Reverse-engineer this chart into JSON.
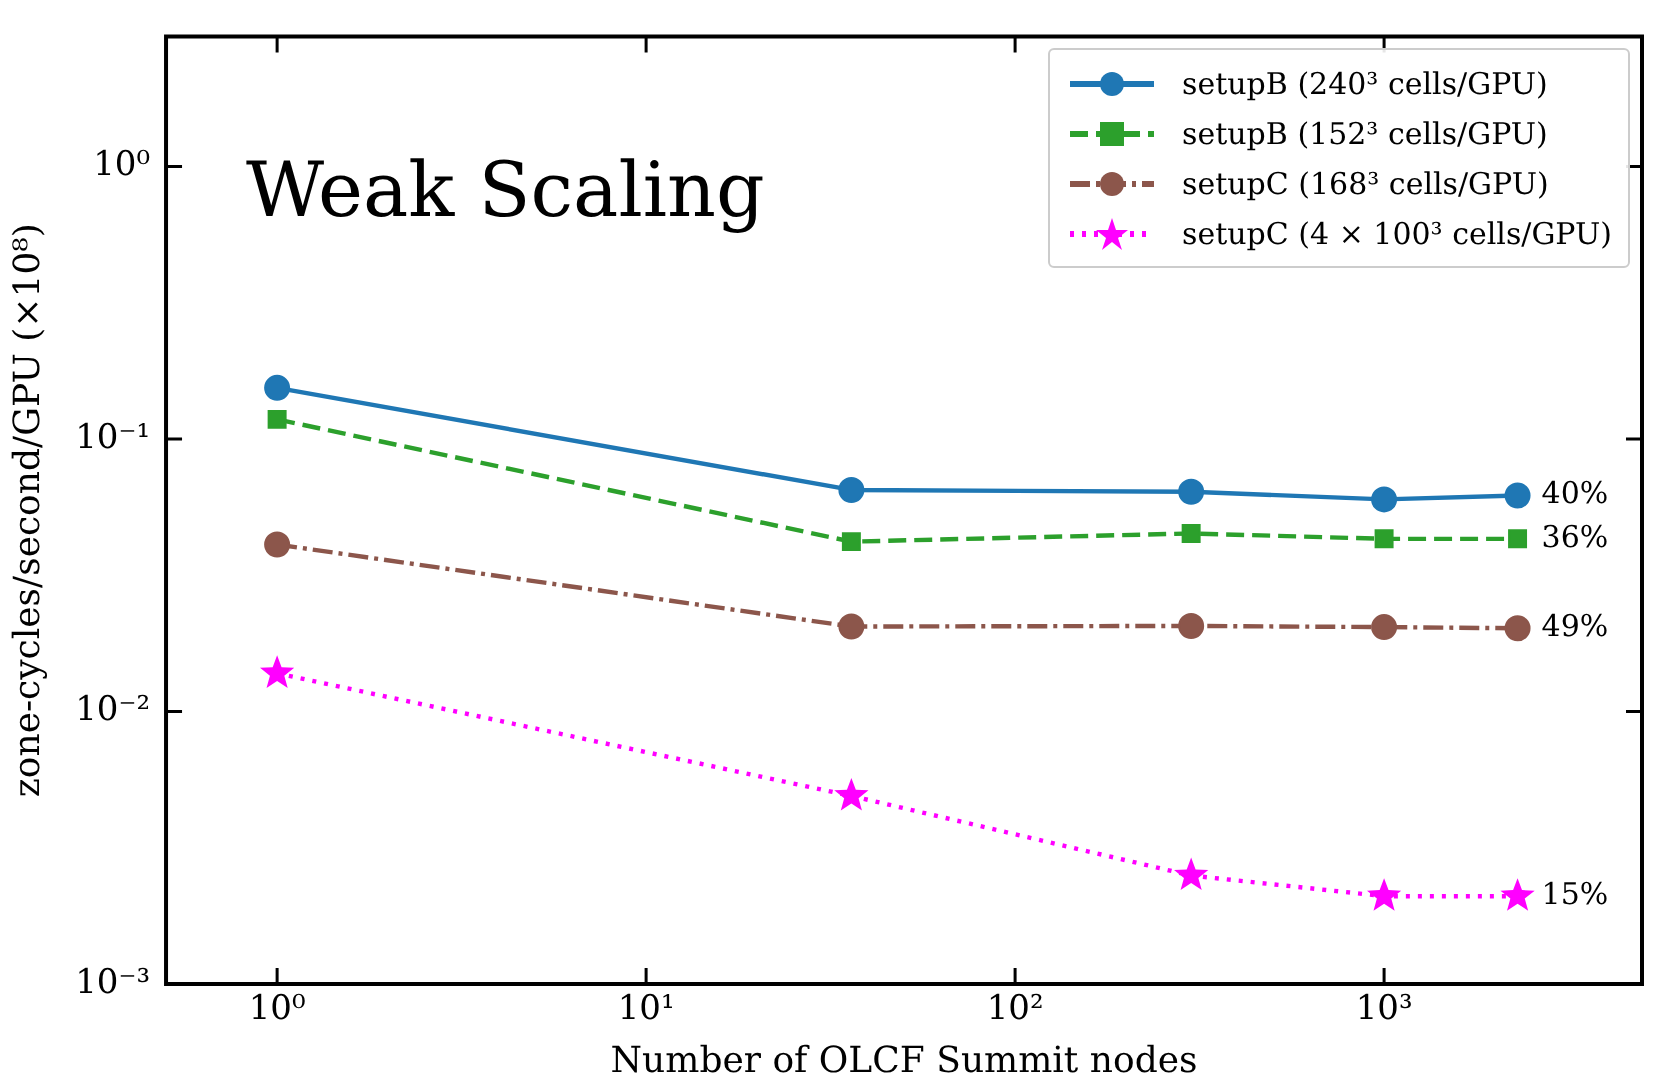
{
  "chart_data": {
    "type": "line",
    "title": "Weak Scaling",
    "xlabel": "Number of OLCF Summit nodes",
    "ylabel": "zone-cycles/second/GPU (×10⁸)",
    "x": [
      1,
      36,
      300,
      1000,
      2300
    ],
    "series": [
      {
        "name": "setupB (240³ cells/GPU)",
        "color": "#1f77b4",
        "marker": "circle",
        "line_style": "solid",
        "values": [
          0.154,
          0.065,
          0.064,
          0.06,
          0.062
        ]
      },
      {
        "name": "setupB (152³ cells/GPU)",
        "color": "#2ca02c",
        "marker": "square",
        "line_style": "dashed",
        "values": [
          0.118,
          0.042,
          0.045,
          0.043,
          0.043
        ]
      },
      {
        "name": "setupC (168³ cells/GPU)",
        "color": "#8c564b",
        "marker": "circle",
        "line_style": "dashdot",
        "values": [
          0.041,
          0.0205,
          0.0206,
          0.0204,
          0.0202
        ]
      },
      {
        "name": "setupC (4 × 100³ cells/GPU)",
        "color": "#ff00ff",
        "marker": "star",
        "line_style": "dotted",
        "values": [
          0.0138,
          0.0049,
          0.0025,
          0.0021,
          0.0021
        ]
      }
    ],
    "annotations": [
      "40%",
      "36%",
      "49%",
      "15%"
    ],
    "log": "xy",
    "xlim": [
      0.5,
      5000
    ],
    "ylim": [
      0.001,
      3
    ],
    "xticks": [
      {
        "value": 1,
        "label": "10⁰"
      },
      {
        "value": 10,
        "label": "10¹"
      },
      {
        "value": 100,
        "label": "10²"
      },
      {
        "value": 1000,
        "label": "10³"
      }
    ],
    "yticks": [
      {
        "value": 0.001,
        "label": "10⁻³"
      },
      {
        "value": 0.01,
        "label": "10⁻²"
      },
      {
        "value": 0.1,
        "label": "10⁻¹"
      },
      {
        "value": 1,
        "label": "10⁰"
      }
    ],
    "grid": false,
    "legend": "top right"
  }
}
